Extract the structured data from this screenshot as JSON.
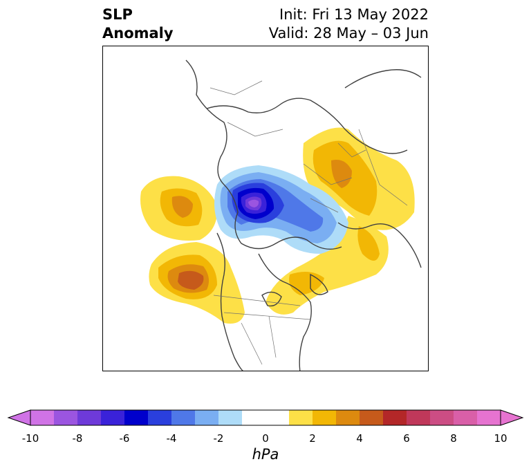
{
  "title": {
    "left_line1": "SLP",
    "left_line2": "Anomaly",
    "right_line1": "Init: Fri 13 May 2022",
    "right_line2": "Valid: 28 May – 03 Jun"
  },
  "colorbar": {
    "unit": "hPa",
    "ticks": [
      "-10",
      "-8",
      "-6",
      "-4",
      "-2",
      "0",
      "2",
      "4",
      "6",
      "8",
      "10"
    ],
    "colors": [
      "#d073e6",
      "#9b55e0",
      "#6e3ad9",
      "#3a22d9",
      "#0000cc",
      "#2a3fdd",
      "#4f78e8",
      "#7aaef2",
      "#aedcf8",
      "#ffffff",
      "#ffffff",
      "#fde047",
      "#f2b705",
      "#dd8a0f",
      "#c65a1b",
      "#b32728",
      "#c0385a",
      "#cc4d84",
      "#d95fa8",
      "#e673d0"
    ],
    "under_color": "#d073e6",
    "over_color": "#e673d0"
  },
  "map": {
    "projection": "north-polar-stereographic",
    "features": [
      {
        "name": "negative-anomaly-center-arctic",
        "sign": "negative",
        "peak_hpa": -8
      },
      {
        "name": "positive-anomaly-north-pacific",
        "sign": "positive",
        "peak_hpa": 5
      },
      {
        "name": "positive-anomaly-gulf-of-alaska",
        "sign": "positive",
        "peak_hpa": 3
      },
      {
        "name": "positive-anomaly-siberia",
        "sign": "positive",
        "peak_hpa": 3
      },
      {
        "name": "positive-anomaly-north-atlantic",
        "sign": "positive",
        "peak_hpa": 2
      }
    ]
  }
}
